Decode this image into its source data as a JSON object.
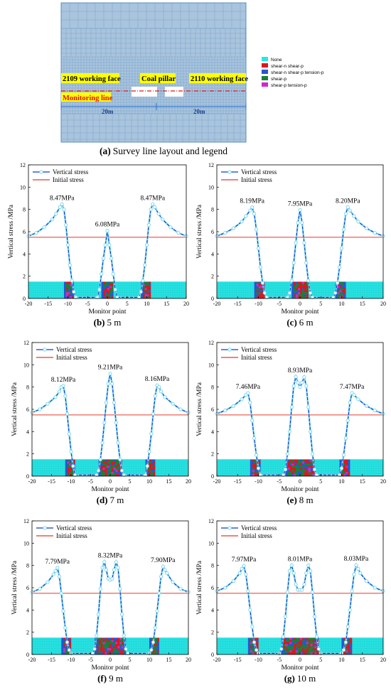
{
  "layout_panel": {
    "caption_letter": "(a)",
    "caption_text": "Survey line layout and legend",
    "labels": {
      "left_face": "2109 working face",
      "pillar": "Coal pillar",
      "right_face": "2110 working face",
      "monitoring": "Monitoring line",
      "dim_left": "20m",
      "dim_right": "20m"
    },
    "legend": [
      {
        "label": "None",
        "color": "#27e8e8"
      },
      {
        "label": "shear-n shear-p",
        "color": "#e0141c"
      },
      {
        "label": "shear-n shear-p tension-p",
        "color": "#2456d6"
      },
      {
        "label": "shear-p",
        "color": "#1a7f3a"
      },
      {
        "label": "shear-p tension-p",
        "color": "#d428c8"
      }
    ],
    "colors": {
      "mesh": "#a9c4dd",
      "mesh_line": "#5a8cc0",
      "label_bg": "#ffff00",
      "monitor_line": "#e0141c",
      "dim_line": "#2c6fd0"
    }
  },
  "legend_labels": {
    "vertical": "Vertical stress",
    "initial": "Initial stress"
  },
  "series_colors": {
    "vertical_line": "#1338c8",
    "vertical_marker": "#7fd8ef",
    "initial": "#e8372a",
    "band": "#27e8e8"
  },
  "chart_data": [
    {
      "type": "line",
      "caption_letter": "(b)",
      "caption_text": "5 m",
      "xlabel": "Monitor point",
      "ylabel": "Vertical stress /MPa",
      "xlim": [
        -20,
        20
      ],
      "ylim": [
        0,
        12
      ],
      "xticks": [
        "-20",
        "-15",
        "-10",
        "-5",
        "0",
        "5",
        "10",
        "15",
        "20"
      ],
      "yticks": [
        "0",
        "2",
        "4",
        "6",
        "8",
        "10",
        "12"
      ],
      "initial_stress": 5.5,
      "x": [
        -20,
        -18,
        -16,
        -14,
        -13,
        -12,
        -11.5,
        -11,
        -10.5,
        -10,
        -9.5,
        -9,
        -8.5,
        -8,
        -2.5,
        -2,
        -1.5,
        -1,
        -0.5,
        0,
        0.5,
        1,
        1.5,
        2,
        2.5,
        8,
        8.5,
        9,
        9.5,
        10,
        10.5,
        11,
        11.5,
        12,
        13,
        14,
        16,
        18,
        20
      ],
      "y": [
        5.6,
        5.9,
        6.4,
        7.1,
        7.6,
        8.2,
        8.47,
        8.0,
        6.6,
        4.8,
        3.0,
        1.6,
        0.6,
        0.1,
        0.1,
        0.8,
        2.2,
        3.6,
        4.8,
        6.08,
        4.8,
        3.6,
        2.2,
        0.8,
        0.1,
        0.1,
        0.6,
        1.6,
        3.0,
        4.8,
        6.6,
        8.0,
        8.47,
        8.2,
        7.6,
        7.1,
        6.4,
        5.9,
        5.6
      ],
      "peak_labels": [
        {
          "x": -11.5,
          "y": 8.47,
          "text": "8.47MPa"
        },
        {
          "x": 0,
          "y": 6.08,
          "text": "6.08MPa"
        },
        {
          "x": 11.5,
          "y": 8.47,
          "text": "8.47MPa"
        }
      ],
      "zones": [
        [
          -11,
          -8.5
        ],
        [
          -1.5,
          1.5
        ],
        [
          8.5,
          11
        ]
      ]
    },
    {
      "type": "line",
      "caption_letter": "(c)",
      "caption_text": "6 m",
      "xlabel": "Monitor point",
      "ylabel": "Vertical stress /MPa",
      "xlim": [
        -20,
        20
      ],
      "ylim": [
        0,
        12
      ],
      "xticks": [
        "-20",
        "-15",
        "-10",
        "-5",
        "0",
        "5",
        "10",
        "15",
        "20"
      ],
      "yticks": [
        "0",
        "2",
        "4",
        "6",
        "8",
        "10",
        "12"
      ],
      "initial_stress": 5.5,
      "x": [
        -20,
        -18,
        -16,
        -14,
        -13,
        -12,
        -11.5,
        -11,
        -10.5,
        -10,
        -9.5,
        -9,
        -8.5,
        -8,
        -3,
        -2.5,
        -2,
        -1.5,
        -1,
        -0.5,
        0,
        0.5,
        1,
        1.5,
        2,
        2.5,
        3,
        8,
        8.5,
        9,
        9.5,
        10,
        10.5,
        11,
        11.5,
        12,
        13,
        14,
        16,
        18,
        20
      ],
      "y": [
        5.6,
        5.9,
        6.3,
        6.9,
        7.4,
        7.9,
        8.19,
        7.6,
        6.2,
        4.5,
        2.8,
        1.4,
        0.5,
        0.1,
        0.1,
        0.5,
        1.6,
        3.2,
        5.0,
        6.8,
        7.95,
        6.8,
        5.0,
        3.2,
        1.6,
        0.5,
        0.1,
        0.1,
        0.5,
        1.4,
        2.8,
        4.5,
        6.2,
        7.6,
        8.2,
        7.9,
        7.4,
        6.9,
        6.3,
        5.9,
        5.6
      ],
      "peak_labels": [
        {
          "x": -11.5,
          "y": 8.19,
          "text": "8.19MPa"
        },
        {
          "x": 0,
          "y": 7.95,
          "text": "7.95MPa"
        },
        {
          "x": 11.5,
          "y": 8.2,
          "text": "8.20MPa"
        }
      ],
      "zones": [
        [
          -11,
          -8.5
        ],
        [
          -2,
          2
        ],
        [
          8.5,
          11
        ]
      ]
    },
    {
      "type": "line",
      "caption_letter": "(d)",
      "caption_text": "7 m",
      "xlabel": "Monitor point",
      "ylabel": "Vertical stress /MPa",
      "xlim": [
        -20,
        20
      ],
      "ylim": [
        0,
        12
      ],
      "xticks": [
        "-20",
        "-15",
        "-10",
        "-5",
        "0",
        "5",
        "10",
        "15",
        "20"
      ],
      "yticks": [
        "0",
        "2",
        "4",
        "6",
        "8",
        "10",
        "12"
      ],
      "initial_stress": 5.5,
      "x": [
        -20,
        -18,
        -16,
        -14,
        -13,
        -12.5,
        -12,
        -11.5,
        -11,
        -10.5,
        -10,
        -9.5,
        -9,
        -3.5,
        -3,
        -2.5,
        -2,
        -1.5,
        -1,
        -0.5,
        0,
        0.5,
        1,
        1.5,
        2,
        2.5,
        3,
        3.5,
        9,
        9.5,
        10,
        10.5,
        11,
        11.5,
        12,
        12.5,
        13,
        14,
        16,
        18,
        20
      ],
      "y": [
        5.7,
        6.0,
        6.5,
        7.1,
        7.6,
        8.0,
        8.12,
        7.2,
        5.6,
        3.8,
        2.2,
        0.9,
        0.1,
        0.1,
        0.5,
        1.5,
        3.0,
        4.8,
        6.6,
        8.3,
        9.21,
        8.3,
        6.6,
        4.8,
        3.0,
        1.5,
        0.5,
        0.1,
        0.1,
        0.9,
        2.2,
        3.8,
        5.6,
        7.2,
        8.16,
        8.0,
        7.6,
        7.1,
        6.5,
        6.0,
        5.7
      ],
      "peak_labels": [
        {
          "x": -12,
          "y": 8.12,
          "text": "8.12MPa"
        },
        {
          "x": 0,
          "y": 9.21,
          "text": "9.21MPa"
        },
        {
          "x": 12,
          "y": 8.16,
          "text": "8.16MPa"
        }
      ],
      "zones": [
        [
          -11.5,
          -9
        ],
        [
          -3,
          3
        ],
        [
          9,
          11.5
        ]
      ]
    },
    {
      "type": "line",
      "caption_letter": "(e)",
      "caption_text": "8 m",
      "xlabel": "Monitor point",
      "ylabel": "Vertical stress /MPa",
      "xlim": [
        -20,
        20
      ],
      "ylim": [
        0,
        12
      ],
      "xticks": [
        "-20",
        "-15",
        "-10",
        "-5",
        "0",
        "5",
        "10",
        "15",
        "20"
      ],
      "yticks": [
        "0",
        "2",
        "4",
        "6",
        "8",
        "10",
        "12"
      ],
      "initial_stress": 5.5,
      "x": [
        -20,
        -18,
        -16,
        -14,
        -13,
        -12.5,
        -12,
        -11.5,
        -11,
        -10.5,
        -10,
        -9.5,
        -4,
        -3.5,
        -3,
        -2.5,
        -2,
        -1.5,
        -1,
        -0.5,
        0,
        0.5,
        1,
        1.5,
        2,
        2.5,
        3,
        3.5,
        4,
        9.5,
        10,
        10.5,
        11,
        11.5,
        12,
        12.5,
        13,
        14,
        16,
        18,
        20
      ],
      "y": [
        5.6,
        5.9,
        6.3,
        6.9,
        7.3,
        7.46,
        6.6,
        5.0,
        3.4,
        1.9,
        0.7,
        0.1,
        0.1,
        0.6,
        2.0,
        4.0,
        6.2,
        8.1,
        8.93,
        8.4,
        8.0,
        8.4,
        8.9,
        8.1,
        6.2,
        4.0,
        2.0,
        0.6,
        0.1,
        0.1,
        0.7,
        1.9,
        3.4,
        5.0,
        6.6,
        7.47,
        7.3,
        6.9,
        6.3,
        5.9,
        5.6
      ],
      "peak_labels": [
        {
          "x": -12.5,
          "y": 7.46,
          "text": "7.46MPa"
        },
        {
          "x": 0,
          "y": 8.93,
          "text": "8.93MPa"
        },
        {
          "x": 12.5,
          "y": 7.47,
          "text": "7.47MPa"
        }
      ],
      "zones": [
        [
          -12,
          -9.5
        ],
        [
          -3.5,
          3.5
        ],
        [
          9.5,
          12
        ]
      ]
    },
    {
      "type": "line",
      "caption_letter": "(f)",
      "caption_text": "9 m",
      "xlabel": "Monitor point",
      "ylabel": "Vertical stress /MPa",
      "xlim": [
        -20,
        20
      ],
      "ylim": [
        0,
        12
      ],
      "xticks": [
        "-20",
        "-15",
        "-10",
        "-5",
        "0",
        "5",
        "10",
        "15",
        "20"
      ],
      "yticks": [
        "0",
        "2",
        "4",
        "6",
        "8",
        "10",
        "12"
      ],
      "initial_stress": 5.5,
      "x": [
        -20,
        -18,
        -16,
        -14.5,
        -14,
        -13.5,
        -13,
        -12.5,
        -12,
        -11.5,
        -11,
        -10.5,
        -10,
        -4.5,
        -4,
        -3.5,
        -3,
        -2.5,
        -2,
        -1.5,
        -1,
        -0.5,
        0,
        0.5,
        1,
        1.5,
        2,
        2.5,
        3,
        3.5,
        4,
        4.5,
        10,
        10.5,
        11,
        11.5,
        12,
        12.5,
        13,
        13.5,
        14,
        14.5,
        16,
        18,
        20
      ],
      "y": [
        5.6,
        5.9,
        6.5,
        7.2,
        7.5,
        7.79,
        7.0,
        5.5,
        3.9,
        2.4,
        1.1,
        0.4,
        0.1,
        0.1,
        0.5,
        1.7,
        3.6,
        5.9,
        7.8,
        8.32,
        7.6,
        6.8,
        6.7,
        6.8,
        7.6,
        8.3,
        7.8,
        5.9,
        3.6,
        1.7,
        0.5,
        0.1,
        0.1,
        0.4,
        1.1,
        2.4,
        3.9,
        5.5,
        7.0,
        7.9,
        7.6,
        7.3,
        6.5,
        5.9,
        5.6
      ],
      "peak_labels": [
        {
          "x": -13.5,
          "y": 7.79,
          "text": "7.79MPa"
        },
        {
          "x": 0,
          "y": 8.32,
          "text": "8.32MPa"
        },
        {
          "x": 13.5,
          "y": 7.9,
          "text": "7.90MPa"
        }
      ],
      "zones": [
        [
          -12.5,
          -10
        ],
        [
          -4,
          4
        ],
        [
          10,
          12.5
        ]
      ]
    },
    {
      "type": "line",
      "caption_letter": "(g)",
      "caption_text": "10 m",
      "xlabel": "Monitor point",
      "ylabel": "Vertical stress /MPa",
      "xlim": [
        -20,
        20
      ],
      "ylim": [
        0,
        12
      ],
      "xticks": [
        "-20",
        "-15",
        "-10",
        "-5",
        "0",
        "5",
        "10",
        "15",
        "20"
      ],
      "yticks": [
        "0",
        "2",
        "4",
        "6",
        "8",
        "10",
        "12"
      ],
      "initial_stress": 5.5,
      "x": [
        -20,
        -18,
        -16,
        -14.5,
        -14,
        -13.5,
        -13,
        -12.5,
        -12,
        -11.5,
        -11,
        -10.5,
        -10,
        -5,
        -4.5,
        -4,
        -3.5,
        -3,
        -2.5,
        -2,
        -1.5,
        -1,
        -0.5,
        0,
        0.5,
        1,
        1.5,
        2,
        2.5,
        3,
        3.5,
        4,
        4.5,
        5,
        10,
        10.5,
        11,
        11.5,
        12,
        12.5,
        13,
        13.5,
        14,
        14.5,
        16,
        18,
        20
      ],
      "y": [
        5.7,
        6.0,
        6.6,
        7.3,
        7.7,
        7.97,
        7.2,
        5.7,
        4.0,
        2.5,
        1.1,
        0.4,
        0.1,
        0.1,
        0.5,
        1.6,
        3.4,
        5.6,
        7.5,
        8.01,
        7.3,
        6.3,
        5.8,
        5.8,
        5.8,
        6.3,
        7.3,
        8.0,
        7.5,
        5.6,
        3.4,
        1.6,
        0.5,
        0.1,
        0.1,
        0.4,
        1.1,
        2.5,
        4.0,
        5.7,
        7.2,
        8.03,
        7.7,
        7.3,
        6.6,
        6.0,
        5.7
      ],
      "peak_labels": [
        {
          "x": -13.5,
          "y": 7.97,
          "text": "7.97MPa"
        },
        {
          "x": 0,
          "y": 8.01,
          "text": "8.01MPa"
        },
        {
          "x": 13.5,
          "y": 8.03,
          "text": "8.03MPa"
        }
      ],
      "zones": [
        [
          -12.5,
          -10
        ],
        [
          -4.5,
          4.5
        ],
        [
          10,
          12.5
        ]
      ]
    }
  ]
}
